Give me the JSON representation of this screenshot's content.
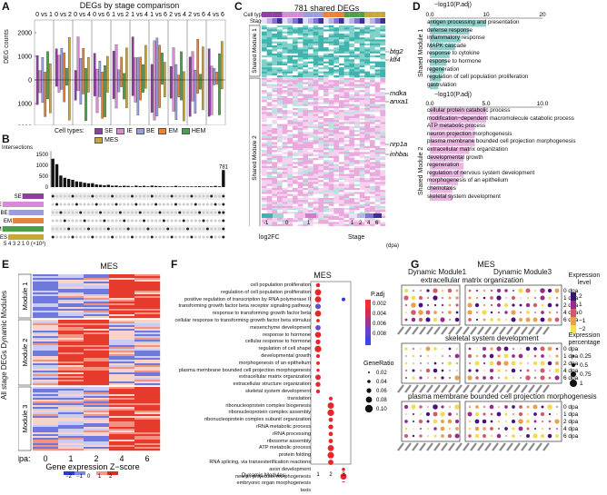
{
  "panels": {
    "A": {
      "letter": "A",
      "title": "DEGs by stage comparison",
      "ylabel": "DEG counts",
      "yticks": [
        "2000",
        "1000",
        "0",
        "1000",
        "2000"
      ],
      "comparisons": [
        "0 vs 1",
        "0 vs 2",
        "0 vs 4",
        "0 vs 6",
        "1 vs 2",
        "1 vs 4",
        "1 vs 6",
        "2 vs 4",
        "2 vs 6",
        "4 vs 6"
      ],
      "cell_types_label": "Cell types:",
      "cell_types": [
        {
          "name": "SE",
          "color": "#8e3fa0"
        },
        {
          "name": "IE",
          "color": "#d98ad6"
        },
        {
          "name": "BE",
          "color": "#9a9ee0"
        },
        {
          "name": "EM",
          "color": "#e7843a"
        },
        {
          "name": "HEM",
          "color": "#4e9f4a"
        },
        {
          "name": "MES",
          "color": "#c9a63a"
        }
      ]
    },
    "B": {
      "letter": "B",
      "intersections_label": "Intersections",
      "yticks": [
        "1500",
        "1000",
        "500",
        "0"
      ],
      "max_label": "781",
      "sets": [
        "SE",
        "IE",
        "BE",
        "EM",
        "HEM",
        "MES"
      ],
      "xaxis": "5 4 3 2 1 0 (×10³)"
    },
    "C": {
      "letter": "C",
      "title": "781 shared DEGs",
      "row_labels": [
        "Cell types",
        "Stage"
      ],
      "modules": [
        "Shared Module 1",
        "Shared Module 2"
      ],
      "genes": [
        "btg2",
        "klf4",
        "mdka",
        "anxa1c",
        "nrp1a",
        "inhbaa"
      ],
      "logfc_label": "log2FC",
      "logfc_ticks": [
        "-1",
        "0",
        "1"
      ],
      "stage_label": "Stage",
      "stage_ticks": [
        "1",
        "2",
        "4",
        "6"
      ],
      "stage_unit": "(dpa)"
    },
    "D": {
      "letter": "D",
      "axis_title": "−log10(P.adj)",
      "axis1_ticks": [
        "0.0",
        "10",
        "20"
      ],
      "axis2_ticks": [
        "0.0",
        "5.0",
        "10.0"
      ],
      "module1_label": "Shared Module 1",
      "module2_label": "Shared Module 2",
      "module1_terms": [
        {
          "term": "antigen processing and presentation",
          "value": 20
        },
        {
          "term": "defense response",
          "value": 14
        },
        {
          "term": "inflammatory response",
          "value": 11
        },
        {
          "term": "MAPK cascade",
          "value": 9
        },
        {
          "term": "response to cytokine",
          "value": 7
        },
        {
          "term": "response to hormone",
          "value": 6
        },
        {
          "term": "regeneration",
          "value": 5
        },
        {
          "term": "regulation of cell population proliferation",
          "value": 4
        },
        {
          "term": "gastrulation",
          "value": 3
        }
      ],
      "module2_terms": [
        {
          "term": "cellular protein catabolic process",
          "value": 5
        },
        {
          "term": "modification−dependent macromolecule catabolic process",
          "value": 5
        },
        {
          "term": "ATP metabolic process",
          "value": 4
        },
        {
          "term": "neuron projection morphogenesis",
          "value": 4
        },
        {
          "term": "plasma membrane bounded cell projection morphogenesis",
          "value": 4
        },
        {
          "term": "extracellular matrix organization",
          "value": 3.5
        },
        {
          "term": "developmental growth",
          "value": 3
        },
        {
          "term": "regeneration",
          "value": 3
        },
        {
          "term": "regulation of nervous system development",
          "value": 3
        },
        {
          "term": "morphogenesis of an epithelium",
          "value": 2.5
        },
        {
          "term": "chemotaxis",
          "value": 2
        },
        {
          "term": "skeletal system development",
          "value": 2
        }
      ]
    },
    "E": {
      "letter": "E",
      "title": "MES",
      "ylabel": "All stage DEGs Dynamic Modules",
      "modules": [
        "Module 1",
        "Module 2",
        "Module 3"
      ],
      "dpa_label": "dpa:",
      "dpa": [
        "0",
        "1",
        "2",
        "4",
        "6"
      ],
      "zscore_label": "Gene expression Z−score",
      "zscore_ticks": [
        "−2",
        "−1",
        "0",
        "1",
        "2"
      ]
    },
    "F": {
      "letter": "F",
      "title": "MES",
      "xaxis_title": "Dynamic Modules:",
      "xticks": [
        "1",
        "2",
        "3"
      ],
      "padj_label": "P.adj",
      "padj_ticks": [
        "0.002",
        "0.004",
        "0.006",
        "0.008"
      ],
      "gr_label": "GeneRatio",
      "gr_ticks": [
        "0.02",
        "0.04",
        "0.06",
        "0.08",
        "0.10"
      ],
      "terms": [
        "cell population proliferation",
        "regulation of cell population proliferation",
        "positive regulation of transcription by RNA polymerase II",
        "transforming growth factor beta receptor signaling pathway",
        "response to transforming growth factor beta",
        "cellular response to transforming growth factor beta stimulus",
        "mesenchyme development",
        "response to hormone",
        "cellular response to hormone",
        "regulation of cell shape",
        "developmental growth",
        "morphogenesis of an epithelium",
        "plasma membrane bounded cell projection morphogenesis",
        "extracellular matrix organization",
        "extracellular structure organization",
        "skeletal system development",
        "translation",
        "ribonucleoprotein complex biogenesis",
        "ribonucleoprotein complex assembly",
        "ribonucleoprotein complex subunit organization",
        "rRNA metabolic process",
        "rRNA processing",
        "ribosome assembly",
        "ATP metabolic process",
        "protein folding",
        "RNA splicing, via transesterification reactions",
        "axon development",
        "neuron projection morphogenesis",
        "embryonic organ morphogenesis",
        "taxis"
      ]
    },
    "G": {
      "letter": "G",
      "title": "MES",
      "subtitle_left": "Dynamic Module1",
      "subtitle_right": "Dynamic Module3",
      "section1": "extracellular matrix organization",
      "section2": "skeletal system development",
      "section3": "plasma membrane bounded cell projection morphogenesis",
      "dpa_rows": [
        "0 dpa",
        "1 dpa",
        "2 dpa",
        "4 dpa",
        "6 dpa"
      ],
      "expr_label": "Expression level",
      "expr_ticks": [
        "2",
        "1",
        "0",
        "−1",
        "−2"
      ],
      "pct_label": "Expression percentage",
      "pct_ticks": [
        "0.25",
        "0.5",
        "0.75",
        "1"
      ]
    }
  }
}
